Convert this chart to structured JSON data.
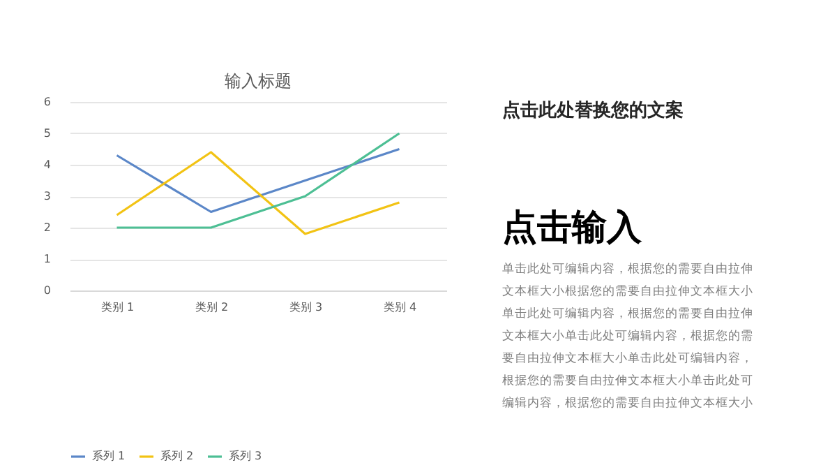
{
  "chart_data": [
    {
      "type": "line",
      "title": "输入标题",
      "categories": [
        "类别 1",
        "类别 2",
        "类别 3",
        "类别 4"
      ],
      "series": [
        {
          "name": "系列 1",
          "color": "#5b87c8",
          "values": [
            4.3,
            2.5,
            3.5,
            4.5
          ]
        },
        {
          "name": "系列 2",
          "color": "#f2c314",
          "values": [
            2.4,
            4.4,
            1.8,
            2.8
          ]
        },
        {
          "name": "系列 3",
          "color": "#4dbf94",
          "values": [
            2,
            2,
            3,
            5
          ]
        }
      ],
      "ylim": [
        0,
        6
      ],
      "yticks": [
        0,
        1,
        2,
        3,
        4,
        5,
        6
      ],
      "grid": "y",
      "legend": "bottom"
    },
    {
      "type": "other",
      "title": "点击此处替换您的文案",
      "annotations": [
        "点击输入",
        "单击此处可编辑内容，根据您的需要自由拉伸文本框大小根据您的需要自由拉伸文本框大小单击此处可编辑内容，根据您的需要自由拉伸文本框大小单击此处可编辑内容，根据您的需要自由拉伸文本框大小单击此处可编辑内容，根据您的需要自由拉伸文本框大小单击此处可编辑内容，根据您的需要自由拉伸文本框大小"
      ]
    }
  ]
}
